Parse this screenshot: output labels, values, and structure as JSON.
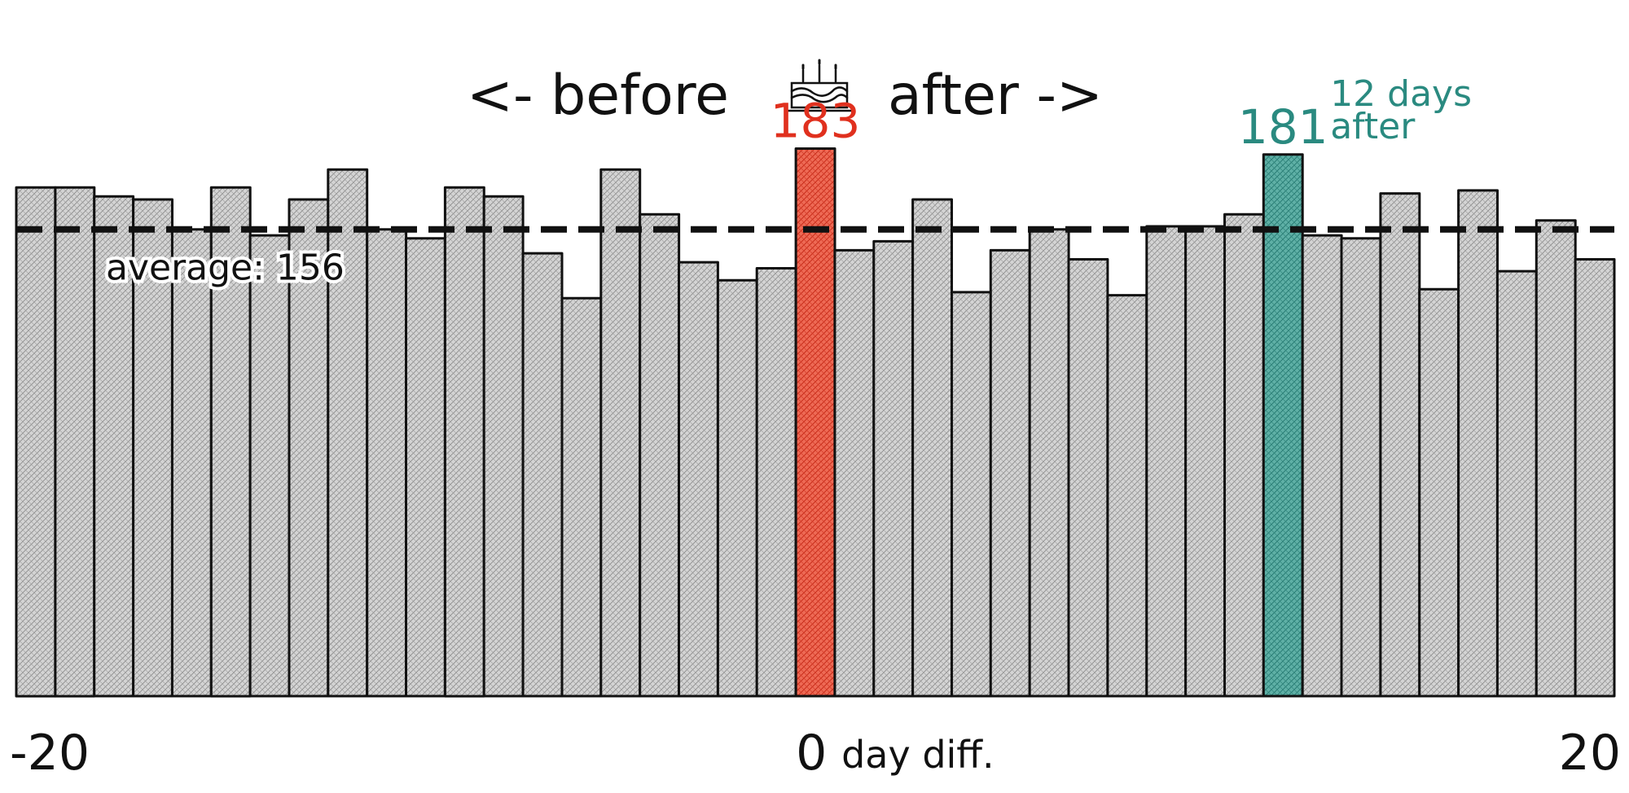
{
  "chart_data": {
    "type": "bar",
    "title_left": "<- before",
    "title_right": "after ->",
    "title_icon": "birthday-cake-icon",
    "x": [
      -20,
      -19,
      -18,
      -17,
      -16,
      -15,
      -14,
      -13,
      -12,
      -11,
      -10,
      -9,
      -8,
      -7,
      -6,
      -5,
      -4,
      -3,
      -2,
      -1,
      0,
      1,
      2,
      3,
      4,
      5,
      6,
      7,
      8,
      9,
      10,
      11,
      12,
      13,
      14,
      15,
      16,
      17,
      18,
      19,
      20
    ],
    "values": [
      170,
      170,
      167,
      166,
      156,
      170,
      154,
      166,
      176,
      156,
      153,
      170,
      167,
      148,
      133,
      176,
      161,
      145,
      139,
      143,
      183,
      149,
      152,
      166,
      135,
      149,
      156,
      146,
      134,
      157,
      157,
      161,
      181,
      154,
      153,
      168,
      136,
      169,
      142,
      159,
      146
    ],
    "ylim": [
      0,
      200
    ],
    "average": 156,
    "average_label": "average: 156",
    "xticks": [
      "-20",
      "0",
      "20"
    ],
    "xlabel": "day diff.",
    "highlights": [
      {
        "x": 0,
        "label": "183",
        "color": "#e0301e"
      },
      {
        "x": 12,
        "label": "181",
        "note_lines": [
          "12 days",
          "after"
        ],
        "color": "#2a8a80"
      }
    ],
    "bar_color": "#cccccc",
    "edge_color": "#111111"
  }
}
